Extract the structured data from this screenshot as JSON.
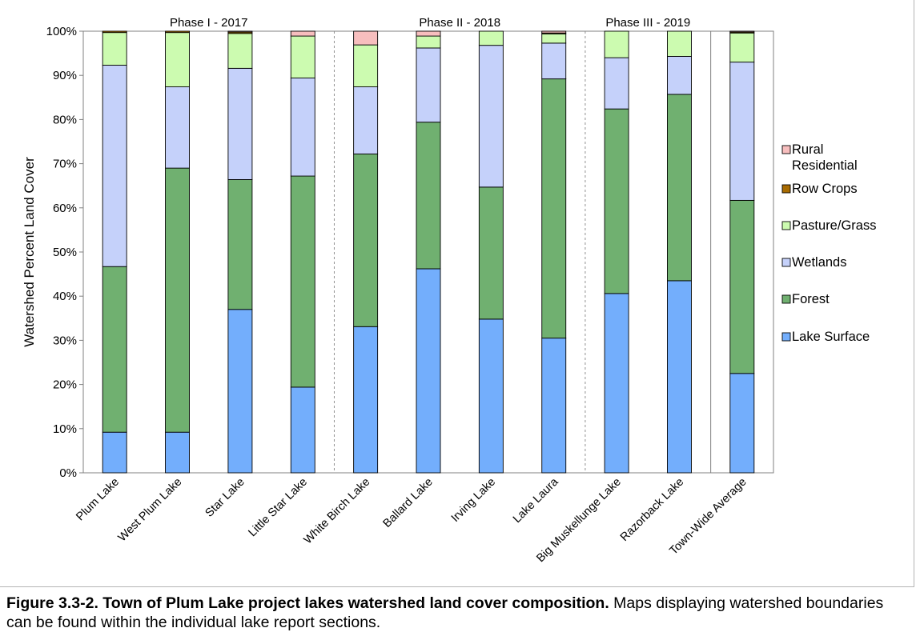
{
  "chart_data": {
    "type": "stacked-bar-100",
    "ylabel": "Watershed Percent Land Cover",
    "xlabel": "",
    "title": "",
    "ylim": [
      0,
      100
    ],
    "yticks": [
      "0%",
      "10%",
      "20%",
      "30%",
      "40%",
      "50%",
      "60%",
      "70%",
      "80%",
      "90%",
      "100%"
    ],
    "legend_position": "right",
    "categories": [
      "Plum Lake",
      "West Plum Lake",
      "Star Lake",
      "Little Star Lake",
      "White Birch Lake",
      "Ballard Lake",
      "Irving Lake",
      "Lake Laura",
      "Big Muskellunge Lake",
      "Razorback Lake",
      "Town-Wide Average"
    ],
    "phases": [
      {
        "label": "Phase I - 2017",
        "from": 0,
        "to": 3
      },
      {
        "label": "Phase II - 2018",
        "from": 4,
        "to": 7
      },
      {
        "label": "Phase III - 2019",
        "from": 8,
        "to": 9
      }
    ],
    "series": [
      {
        "name": "Lake Surface",
        "color": "#73aefc",
        "values": [
          9.2,
          9.2,
          37.0,
          19.4,
          33.1,
          46.2,
          34.8,
          30.5,
          40.6,
          43.5,
          22.5
        ]
      },
      {
        "name": "Forest",
        "color": "#70b070",
        "values": [
          37.5,
          59.8,
          29.4,
          47.8,
          39.1,
          33.2,
          29.9,
          58.7,
          41.8,
          42.2,
          39.2
        ]
      },
      {
        "name": "Wetlands",
        "color": "#c5d1fa",
        "values": [
          45.6,
          18.4,
          25.2,
          22.2,
          15.2,
          16.8,
          32.1,
          8.1,
          11.6,
          8.6,
          31.3
        ]
      },
      {
        "name": "Pasture/Grass",
        "color": "#ccfbb0",
        "values": [
          7.4,
          12.3,
          7.9,
          9.5,
          9.5,
          2.7,
          3.2,
          2.1,
          6.0,
          5.7,
          6.6
        ]
      },
      {
        "name": "Row Crops",
        "color": "#a86b00",
        "values": [
          0.3,
          0.3,
          0.3,
          0.0,
          0.0,
          0.0,
          0.0,
          0.2,
          0.0,
          0.0,
          0.2
        ]
      },
      {
        "name": "Rural Residential",
        "color": "#f7bebe",
        "values": [
          0.0,
          0.0,
          0.2,
          1.1,
          3.1,
          1.1,
          0.0,
          0.4,
          0.0,
          0.0,
          0.2
        ]
      }
    ],
    "legend_order": [
      "Rural Residential",
      "Row Crops",
      "Pasture/Grass",
      "Wetlands",
      "Forest",
      "Lake Surface"
    ],
    "legend_label_lines": {
      "Rural Residential": [
        "Rural",
        "Residential"
      ]
    }
  },
  "caption": {
    "title": "Figure 3.3-2.  Town of Plum Lake project lakes watershed land cover composition.",
    "text": "  Maps displaying watershed boundaries can be found within the individual lake report sections."
  }
}
